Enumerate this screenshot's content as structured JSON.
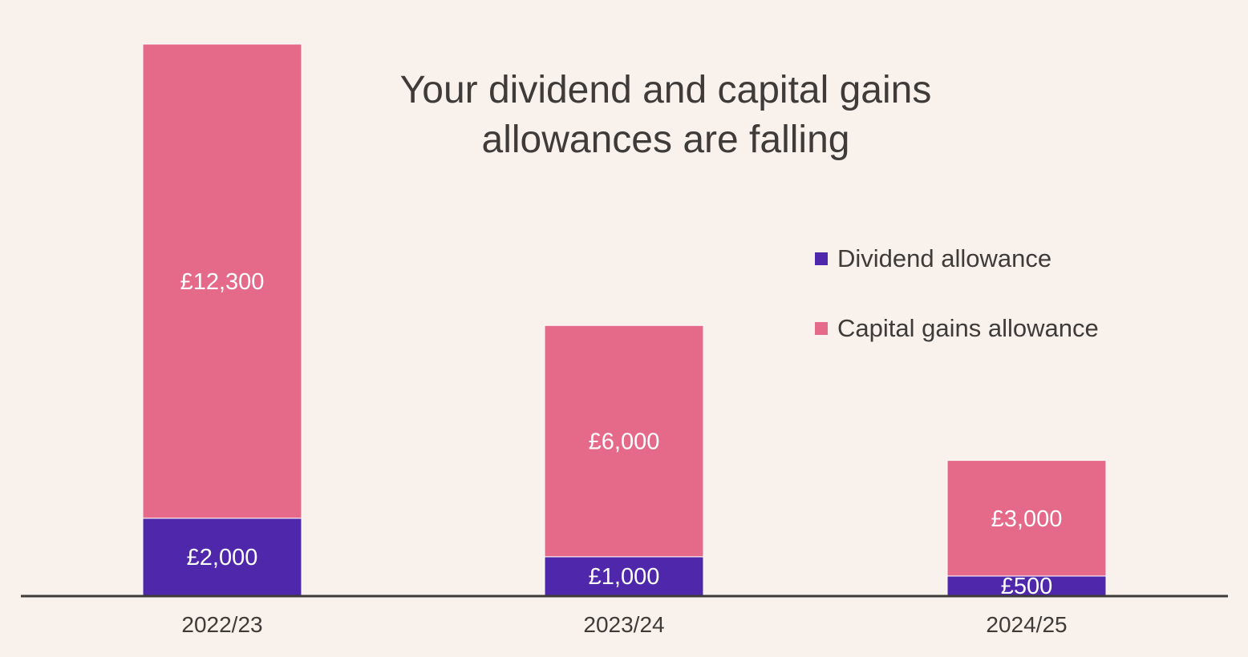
{
  "chart_data": {
    "type": "bar",
    "stacked": true,
    "title": "Your dividend and capital gains allowances are falling",
    "xlabel": "",
    "ylabel": "",
    "categories": [
      "2022/23",
      "2023/24",
      "2024/25"
    ],
    "series": [
      {
        "name": "Dividend allowance",
        "color": "#4e27ab",
        "values": [
          2000,
          1000,
          500
        ],
        "labels": [
          "£2,000",
          "£1,000",
          "£500"
        ]
      },
      {
        "name": "Capital gains allowance",
        "color": "#e56a8a",
        "values": [
          12300,
          6000,
          3000
        ],
        "labels": [
          "£12,300",
          "£6,000",
          "£3,000"
        ]
      }
    ],
    "ylim": [
      0,
      14300
    ],
    "grid": false,
    "legend_position": "right"
  },
  "colors": {
    "background": "#f8f1ec",
    "text": "#3f3b39",
    "axis": "#3f3b39"
  }
}
